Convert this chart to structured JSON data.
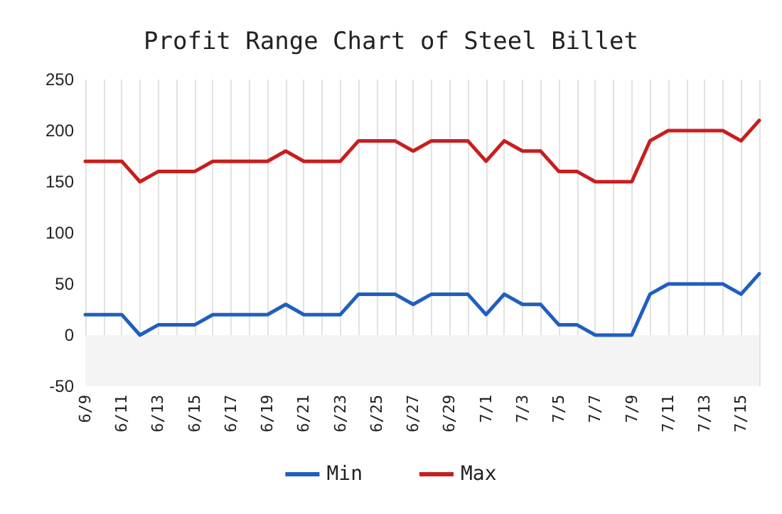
{
  "chart_data": {
    "type": "line",
    "title": "Profit Range Chart of Steel Billet",
    "categories": [
      "6/9",
      null,
      "6/11",
      null,
      "6/13",
      null,
      "6/15",
      null,
      "6/17",
      null,
      "6/19",
      null,
      "6/21",
      null,
      "6/23",
      null,
      "6/25",
      null,
      "6/27",
      null,
      "6/29",
      null,
      "7/1",
      null,
      "7/3",
      null,
      "7/5",
      null,
      "7/7",
      null,
      "7/9",
      null,
      "7/11",
      null,
      "7/13",
      null,
      "7/15",
      null
    ],
    "series": [
      {
        "name": "Min",
        "color": "#1f5fbf",
        "values": [
          20,
          20,
          20,
          0,
          10,
          10,
          10,
          20,
          20,
          20,
          20,
          30,
          20,
          20,
          20,
          40,
          40,
          40,
          30,
          40,
          40,
          40,
          20,
          40,
          30,
          30,
          10,
          10,
          0,
          0,
          0,
          40,
          50,
          50,
          50,
          50,
          40,
          60
        ]
      },
      {
        "name": "Max",
        "color": "#c81e1e",
        "values": [
          170,
          170,
          170,
          150,
          160,
          160,
          160,
          170,
          170,
          170,
          170,
          180,
          170,
          170,
          170,
          190,
          190,
          190,
          180,
          190,
          190,
          190,
          170,
          190,
          180,
          180,
          160,
          160,
          150,
          150,
          150,
          190,
          200,
          200,
          200,
          200,
          190,
          210
        ]
      }
    ],
    "ylim": [
      -50,
      250
    ],
    "yticks": [
      -50,
      0,
      50,
      100,
      150,
      200,
      250
    ],
    "bands": [
      {
        "axis": "y",
        "from": -50,
        "to": 0,
        "color": "#f4f4f4"
      }
    ],
    "grid": "x",
    "legend": "bottom",
    "marker": "none",
    "line_style": "solid"
  }
}
